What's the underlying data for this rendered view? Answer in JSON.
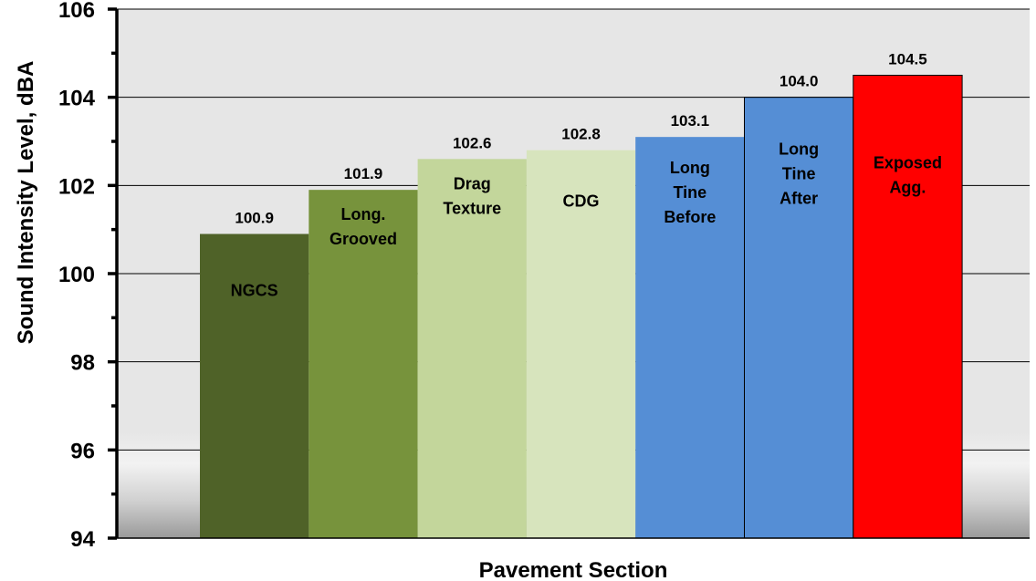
{
  "chart_data": {
    "type": "bar",
    "title": "",
    "xlabel": "Pavement Section",
    "ylabel": "Sound Intensity Level, dBA",
    "ylim": [
      94,
      106
    ],
    "yticks": [
      "94",
      "96",
      "98",
      "100",
      "102",
      "104",
      "106"
    ],
    "grid": true,
    "legend": "none",
    "categories": [
      [
        "NGCS"
      ],
      [
        "Long.",
        "Grooved"
      ],
      [
        "Drag",
        "Texture"
      ],
      [
        "CDG"
      ],
      [
        "Long",
        "Tine",
        "Before"
      ],
      [
        "Long",
        "Tine",
        "After"
      ],
      [
        "Exposed",
        "Agg."
      ]
    ],
    "values": [
      100.9,
      101.9,
      102.6,
      102.8,
      103.1,
      104.0,
      104.5
    ],
    "value_labels": [
      "100.9",
      "101.9",
      "102.6",
      "102.8",
      "103.1",
      "104.0",
      "104.5"
    ],
    "bar_colors": [
      "#4f6228",
      "#77933c",
      "#c3d69b",
      "#d7e4bd",
      "#558ed5",
      "#558ed5",
      "#ff0000"
    ],
    "label_colors": [
      "#000000",
      "#000000",
      "#000000",
      "#000000",
      "#000000",
      "#000000",
      "#000000"
    ]
  }
}
